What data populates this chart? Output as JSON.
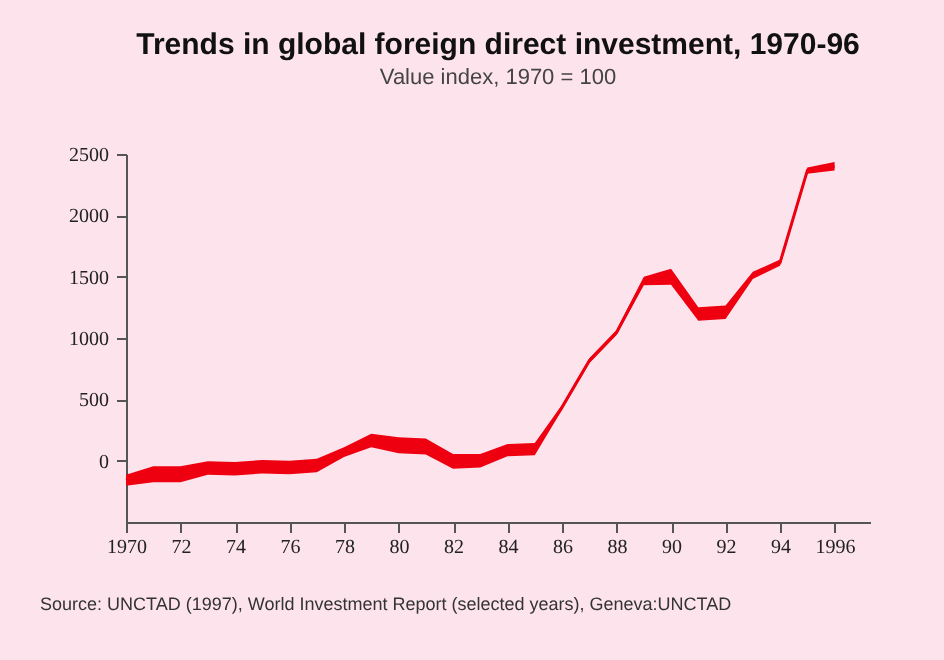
{
  "chart_data": {
    "type": "line",
    "title": "Trends in global foreign direct investment, 1970-96",
    "subtitle": "Value index, 1970 = 100",
    "annotations": [
      "Source: UNCTAD (1997), World Investment Report (selected years), Geneva:UNCTAD"
    ],
    "x": [
      1970,
      1971,
      1972,
      1973,
      1974,
      1975,
      1976,
      1977,
      1978,
      1979,
      1980,
      1981,
      1982,
      1983,
      1984,
      1985,
      1986,
      1987,
      1988,
      1989,
      1990,
      1991,
      1992,
      1993,
      1994,
      1995,
      1996
    ],
    "series": [
      {
        "color": "#ee0010",
        "values": [
          -160,
          -110,
          -110,
          -60,
          -65,
          -50,
          -55,
          -40,
          70,
          165,
          125,
          115,
          -5,
          0,
          85,
          95,
          435,
          815,
          1045,
          1465,
          1500,
          1195,
          1210,
          1510,
          1615,
          2365,
          2400
        ],
        "lower": [
          -205,
          -175,
          -175,
          -115,
          -120,
          -105,
          -110,
          -95,
          30,
          110,
          60,
          50,
          -65,
          -55,
          35,
          45,
          415,
          795,
          1025,
          1430,
          1435,
          1140,
          1155,
          1480,
          1590,
          2340,
          2365
        ],
        "upper": [
          -115,
          -45,
          -45,
          -5,
          -10,
          5,
          0,
          15,
          110,
          220,
          190,
          180,
          55,
          55,
          135,
          145,
          455,
          835,
          1065,
          1500,
          1565,
          1250,
          1265,
          1540,
          1640,
          2390,
          2435
        ]
      }
    ],
    "xlim": [
      1970,
      1997.3
    ],
    "ylim": [
      -500,
      2500
    ],
    "xticks": [
      1970,
      {
        "value": 1972,
        "label": "72"
      },
      {
        "value": 1974,
        "label": "74"
      },
      {
        "value": 1976,
        "label": "76"
      },
      {
        "value": 1978,
        "label": "78"
      },
      {
        "value": 1980,
        "label": "80"
      },
      {
        "value": 1982,
        "label": "82"
      },
      {
        "value": 1984,
        "label": "84"
      },
      {
        "value": 1986,
        "label": "86"
      },
      {
        "value": 1988,
        "label": "88"
      },
      {
        "value": 1990,
        "label": "90"
      },
      {
        "value": 1992,
        "label": "92"
      },
      {
        "value": 1994,
        "label": "94"
      },
      1996
    ],
    "yticks": [
      0,
      500,
      1000,
      1500,
      2000,
      2500
    ]
  }
}
